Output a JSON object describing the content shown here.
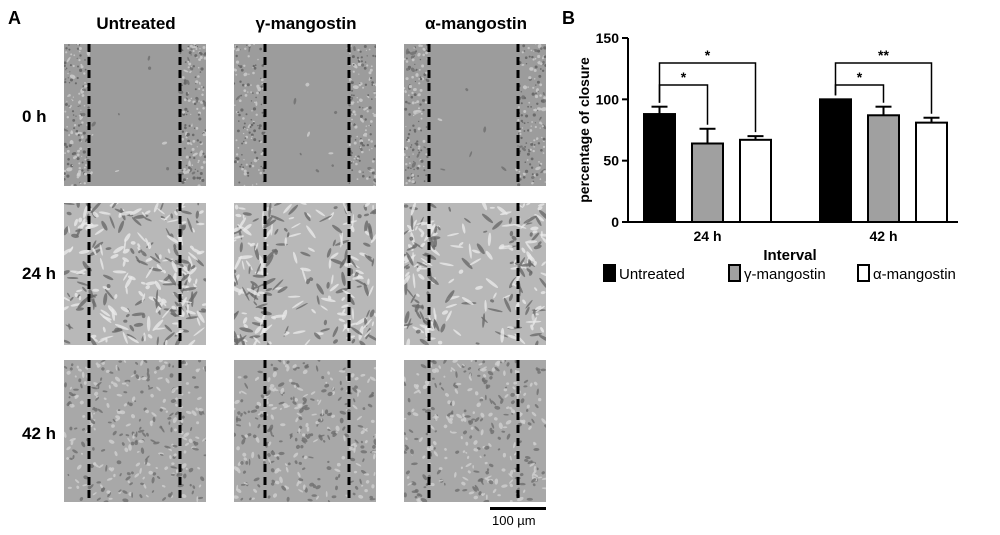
{
  "panel_a": {
    "letter": "A",
    "columns": [
      "Untreated",
      "γ-mangostin",
      "α-mangostin"
    ],
    "rows": [
      "0 h",
      "24 h",
      "42 h"
    ],
    "scale_bar": "100 µm"
  },
  "panel_b": {
    "letter": "B"
  },
  "chart_data": {
    "type": "bar",
    "categories": [
      "24 h",
      "42 h"
    ],
    "xlabel": "Interval",
    "ylabel": "percentage of closure",
    "ylim": [
      0,
      150
    ],
    "yticks": [
      0,
      50,
      100,
      150
    ],
    "grid": false,
    "legend_position": "bottom",
    "series": [
      {
        "name": "Untreated",
        "values": [
          88,
          100
        ],
        "errors": [
          6,
          0
        ],
        "color": "#000000"
      },
      {
        "name": "γ-mangostin",
        "values": [
          64,
          87
        ],
        "errors": [
          12,
          7
        ],
        "color": "#a0a0a0"
      },
      {
        "name": "α-mangostin",
        "values": [
          67,
          81
        ],
        "errors": [
          3,
          4
        ],
        "color": "#ffffff"
      }
    ],
    "significance": [
      {
        "category": "24 h",
        "from": "Untreated",
        "to": "γ-mangostin",
        "label": "*"
      },
      {
        "category": "24 h",
        "from": "Untreated",
        "to": "α-mangostin",
        "label": "*"
      },
      {
        "category": "42 h",
        "from": "Untreated",
        "to": "γ-mangostin",
        "label": "*"
      },
      {
        "category": "42 h",
        "from": "Untreated",
        "to": "α-mangostin",
        "label": "**"
      }
    ]
  }
}
